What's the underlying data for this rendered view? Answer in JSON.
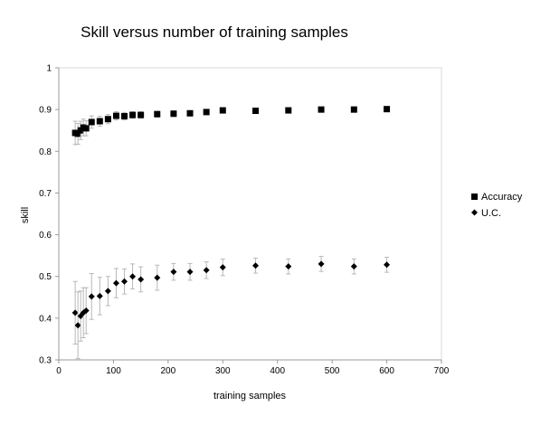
{
  "chart_data": {
    "type": "scatter",
    "title": "Skill versus number of training samples",
    "xlabel": "training samples",
    "ylabel": "skill",
    "xlim": [
      0,
      700
    ],
    "ylim": [
      0.3,
      1
    ],
    "xticks": [
      0,
      100,
      200,
      300,
      400,
      500,
      600,
      700
    ],
    "yticks": [
      0.3,
      0.4,
      0.5,
      0.6,
      0.7,
      0.8,
      0.9,
      1
    ],
    "ytick_labels": [
      "0.3",
      "0.4",
      "0.5",
      "0.6",
      "0.7",
      "0.8",
      "0.9",
      "1"
    ],
    "grid": false,
    "legend_position": "right",
    "series": [
      {
        "name": "Accuracy",
        "marker": "square",
        "color": "#000000",
        "points": [
          {
            "x": 30,
            "y": 0.844,
            "err": 0.028
          },
          {
            "x": 35,
            "y": 0.842,
            "err": 0.025
          },
          {
            "x": 40,
            "y": 0.85,
            "err": 0.022
          },
          {
            "x": 45,
            "y": 0.857,
            "err": 0.02
          },
          {
            "x": 50,
            "y": 0.855,
            "err": 0.018
          },
          {
            "x": 60,
            "y": 0.87,
            "err": 0.015
          },
          {
            "x": 75,
            "y": 0.872,
            "err": 0.012
          },
          {
            "x": 90,
            "y": 0.877,
            "err": 0.011
          },
          {
            "x": 105,
            "y": 0.885,
            "err": 0.01
          },
          {
            "x": 120,
            "y": 0.884,
            "err": 0.009
          },
          {
            "x": 135,
            "y": 0.887,
            "err": 0.008
          },
          {
            "x": 150,
            "y": 0.887,
            "err": 0.008
          },
          {
            "x": 180,
            "y": 0.889,
            "err": 0.007
          },
          {
            "x": 210,
            "y": 0.89,
            "err": 0.007
          },
          {
            "x": 240,
            "y": 0.891,
            "err": 0.006
          },
          {
            "x": 270,
            "y": 0.894,
            "err": 0.006
          },
          {
            "x": 300,
            "y": 0.898,
            "err": 0.005
          },
          {
            "x": 360,
            "y": 0.897,
            "err": 0.005
          },
          {
            "x": 420,
            "y": 0.898,
            "err": 0.004
          },
          {
            "x": 480,
            "y": 0.9,
            "err": 0.004
          },
          {
            "x": 540,
            "y": 0.9,
            "err": 0.004
          },
          {
            "x": 600,
            "y": 0.901,
            "err": 0.004
          }
        ]
      },
      {
        "name": "U.C.",
        "marker": "diamond",
        "color": "#000000",
        "points": [
          {
            "x": 30,
            "y": 0.413,
            "err": 0.075
          },
          {
            "x": 35,
            "y": 0.383,
            "err": 0.08
          },
          {
            "x": 40,
            "y": 0.405,
            "err": 0.06
          },
          {
            "x": 45,
            "y": 0.413,
            "err": 0.06
          },
          {
            "x": 50,
            "y": 0.418,
            "err": 0.055
          },
          {
            "x": 60,
            "y": 0.452,
            "err": 0.055
          },
          {
            "x": 75,
            "y": 0.453,
            "err": 0.045
          },
          {
            "x": 90,
            "y": 0.465,
            "err": 0.035
          },
          {
            "x": 105,
            "y": 0.484,
            "err": 0.035
          },
          {
            "x": 120,
            "y": 0.488,
            "err": 0.03
          },
          {
            "x": 135,
            "y": 0.5,
            "err": 0.03
          },
          {
            "x": 150,
            "y": 0.493,
            "err": 0.03
          },
          {
            "x": 180,
            "y": 0.497,
            "err": 0.03
          },
          {
            "x": 210,
            "y": 0.511,
            "err": 0.02
          },
          {
            "x": 240,
            "y": 0.511,
            "err": 0.02
          },
          {
            "x": 270,
            "y": 0.515,
            "err": 0.02
          },
          {
            "x": 300,
            "y": 0.522,
            "err": 0.02
          },
          {
            "x": 360,
            "y": 0.526,
            "err": 0.018
          },
          {
            "x": 420,
            "y": 0.524,
            "err": 0.018
          },
          {
            "x": 480,
            "y": 0.53,
            "err": 0.018
          },
          {
            "x": 540,
            "y": 0.524,
            "err": 0.018
          },
          {
            "x": 600,
            "y": 0.528,
            "err": 0.018
          }
        ]
      }
    ]
  }
}
